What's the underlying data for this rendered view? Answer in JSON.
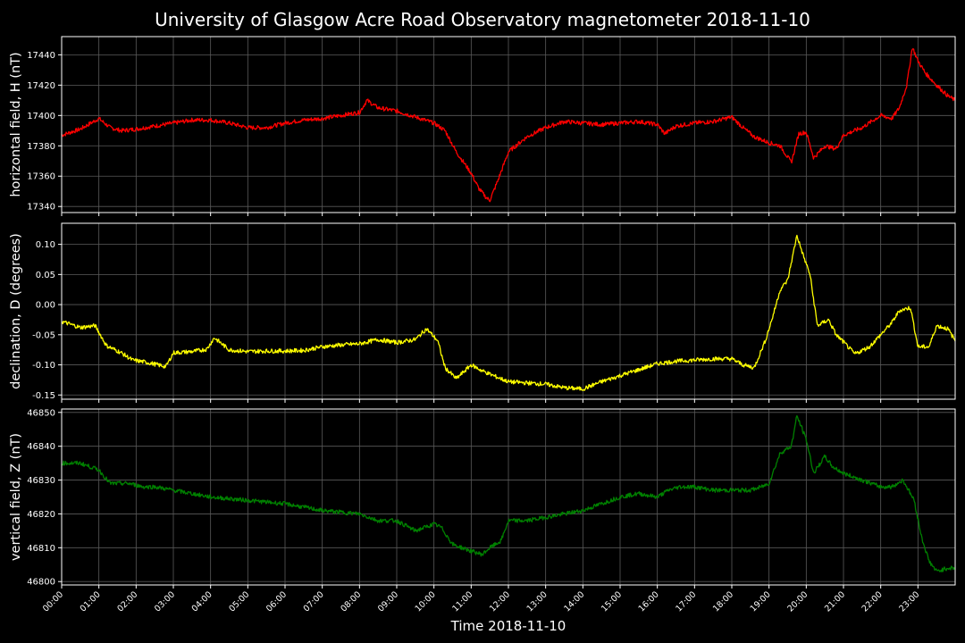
{
  "title": "University of Glasgow Acre Road Observatory magnetometer 2018-11-10",
  "colors": {
    "background": "#000000",
    "text": "#ffffff",
    "grid": "#5a5a5a",
    "h": "#ff0000",
    "d": "#ffff00",
    "z": "#008000"
  },
  "chart_data": {
    "type": "line",
    "title": "University of Glasgow Acre Road Observatory magnetometer 2018-11-10",
    "xlabel": "Time 2018-11-10",
    "x_ticks": [
      "00:00",
      "01:00",
      "02:00",
      "03:00",
      "04:00",
      "05:00",
      "06:00",
      "07:00",
      "08:00",
      "09:00",
      "10:00",
      "11:00",
      "12:00",
      "13:00",
      "14:00",
      "15:00",
      "16:00",
      "17:00",
      "18:00",
      "19:00",
      "20:00",
      "21:00",
      "22:00",
      "23:00"
    ],
    "xlim_hours": [
      0,
      24
    ],
    "grid": true,
    "panels": [
      {
        "ylabel": "horizontal field, H (nT)",
        "color": "#ff0000",
        "ylim": [
          17336,
          17452
        ],
        "yticks": [
          17340,
          17360,
          17380,
          17400,
          17420,
          17440
        ],
        "ytick_labels": [
          "17340",
          "17360",
          "17380",
          "17400",
          "17420",
          "17440"
        ],
        "series": [
          {
            "x": [
              0,
              0.5,
              1.0,
              1.3,
              1.6,
              2.0,
              2.5,
              3.0,
              3.5,
              4.0,
              4.5,
              5.0,
              5.5,
              6.0,
              6.5,
              7.0,
              7.5,
              8.0,
              8.2,
              8.5,
              9.0,
              9.5,
              10.0,
              10.3,
              10.6,
              11.0,
              11.2,
              11.4,
              11.5,
              11.7,
              12.0,
              12.5,
              13.0,
              13.5,
              14.0,
              14.5,
              15.0,
              15.5,
              16.0,
              16.2,
              16.5,
              17.0,
              17.5,
              18.0,
              18.3,
              18.6,
              19.0,
              19.3,
              19.6,
              19.8,
              20.0,
              20.2,
              20.5,
              20.8,
              21.0,
              21.5,
              22.0,
              22.3,
              22.5,
              22.7,
              22.85,
              23.0,
              23.2,
              23.5,
              23.8,
              24.0
            ],
            "y": [
              17387,
              17391,
              17398,
              17392,
              17390,
              17391,
              17393,
              17395,
              17397,
              17397,
              17395,
              17392,
              17392,
              17395,
              17397,
              17398,
              17400,
              17402,
              17410,
              17405,
              17403,
              17399,
              17395,
              17390,
              17376,
              17362,
              17352,
              17346,
              17344,
              17356,
              17376,
              17386,
              17392,
              17396,
              17395,
              17394,
              17395,
              17396,
              17394,
              17388,
              17393,
              17395,
              17396,
              17399,
              17392,
              17386,
              17382,
              17380,
              17369,
              17388,
              17389,
              17372,
              17380,
              17378,
              17387,
              17392,
              17400,
              17398,
              17405,
              17420,
              17445,
              17436,
              17428,
              17420,
              17413,
              17410
            ]
          }
        ]
      },
      {
        "ylabel": "declination, D (degrees)",
        "color": "#ffff00",
        "ylim": [
          -0.157,
          0.135
        ],
        "yticks": [
          -0.15,
          -0.1,
          -0.05,
          0.0,
          0.05,
          0.1
        ],
        "ytick_labels": [
          "-0.15",
          "-0.10",
          "-0.05",
          "0.00",
          "0.05",
          "0.10"
        ],
        "series": [
          {
            "x": [
              0,
              0.5,
              0.9,
              1.2,
              1.6,
              1.9,
              2.3,
              2.8,
              3.0,
              3.5,
              3.9,
              4.1,
              4.5,
              5.0,
              5.5,
              6.0,
              6.5,
              7.0,
              7.5,
              8.0,
              8.5,
              9.0,
              9.5,
              9.8,
              10.1,
              10.3,
              10.6,
              11.0,
              11.3,
              11.6,
              12.0,
              12.5,
              13.0,
              13.5,
              14.0,
              14.5,
              15.0,
              15.5,
              16.0,
              16.5,
              17.0,
              17.5,
              18.0,
              18.3,
              18.6,
              18.9,
              19.1,
              19.3,
              19.5,
              19.75,
              19.9,
              20.1,
              20.3,
              20.6,
              20.8,
              21.0,
              21.3,
              21.7,
              22.0,
              22.3,
              22.5,
              22.8,
              23.0,
              23.3,
              23.5,
              23.8,
              24.0
            ],
            "y": [
              -0.028,
              -0.038,
              -0.035,
              -0.068,
              -0.08,
              -0.092,
              -0.096,
              -0.103,
              -0.08,
              -0.078,
              -0.074,
              -0.055,
              -0.075,
              -0.078,
              -0.077,
              -0.077,
              -0.076,
              -0.07,
              -0.067,
              -0.065,
              -0.058,
              -0.063,
              -0.058,
              -0.04,
              -0.06,
              -0.105,
              -0.123,
              -0.1,
              -0.11,
              -0.118,
              -0.128,
              -0.13,
              -0.132,
              -0.138,
              -0.14,
              -0.128,
              -0.118,
              -0.108,
              -0.098,
              -0.094,
              -0.092,
              -0.09,
              -0.09,
              -0.1,
              -0.105,
              -0.06,
              -0.02,
              0.025,
              0.04,
              0.115,
              0.085,
              0.05,
              -0.035,
              -0.025,
              -0.05,
              -0.062,
              -0.082,
              -0.07,
              -0.05,
              -0.03,
              -0.01,
              -0.005,
              -0.07,
              -0.07,
              -0.035,
              -0.04,
              -0.06
            ]
          }
        ]
      },
      {
        "ylabel": "vertical field, Z (nT)",
        "color": "#008000",
        "ylim": [
          46799,
          46851
        ],
        "yticks": [
          46800,
          46810,
          46820,
          46830,
          46840,
          46850
        ],
        "ytick_labels": [
          "46800",
          "46810",
          "46820",
          "46830",
          "46840",
          "46850"
        ],
        "series": [
          {
            "x": [
              0,
              0.5,
              1.0,
              1.3,
              1.8,
              2.2,
              2.5,
              3.0,
              4.0,
              5.0,
              6.0,
              7.0,
              8.0,
              8.5,
              9.0,
              9.5,
              10.0,
              10.2,
              10.5,
              11.0,
              11.3,
              11.5,
              11.8,
              12.0,
              12.5,
              13.0,
              13.5,
              14.0,
              14.5,
              15.0,
              15.5,
              16.0,
              16.3,
              16.6,
              17.0,
              17.5,
              18.0,
              18.5,
              18.8,
              19.0,
              19.3,
              19.6,
              19.75,
              20.0,
              20.2,
              20.5,
              20.7,
              21.0,
              21.5,
              22.0,
              22.3,
              22.6,
              22.9,
              23.1,
              23.3,
              23.5,
              23.8,
              24.0
            ],
            "y": [
              46835,
              46835,
              46833,
              46829,
              46829,
              46828,
              46828,
              46827,
              46825,
              46824,
              46823,
              46821,
              46820,
              46818,
              46818,
              46815,
              46817,
              46816,
              46811,
              46809,
              46808,
              46810,
              46812,
              46818,
              46818,
              46819,
              46820,
              46821,
              46823,
              46825,
              46826,
              46825,
              46827,
              46828,
              46828,
              46827,
              46827,
              46827,
              46828,
              46829,
              46838,
              46840,
              46849,
              46842,
              46832,
              46837,
              46834,
              46832,
              46830,
              46828,
              46828,
              46830,
              46824,
              46813,
              46806,
              46803,
              46804,
              46804
            ]
          }
        ]
      }
    ]
  }
}
